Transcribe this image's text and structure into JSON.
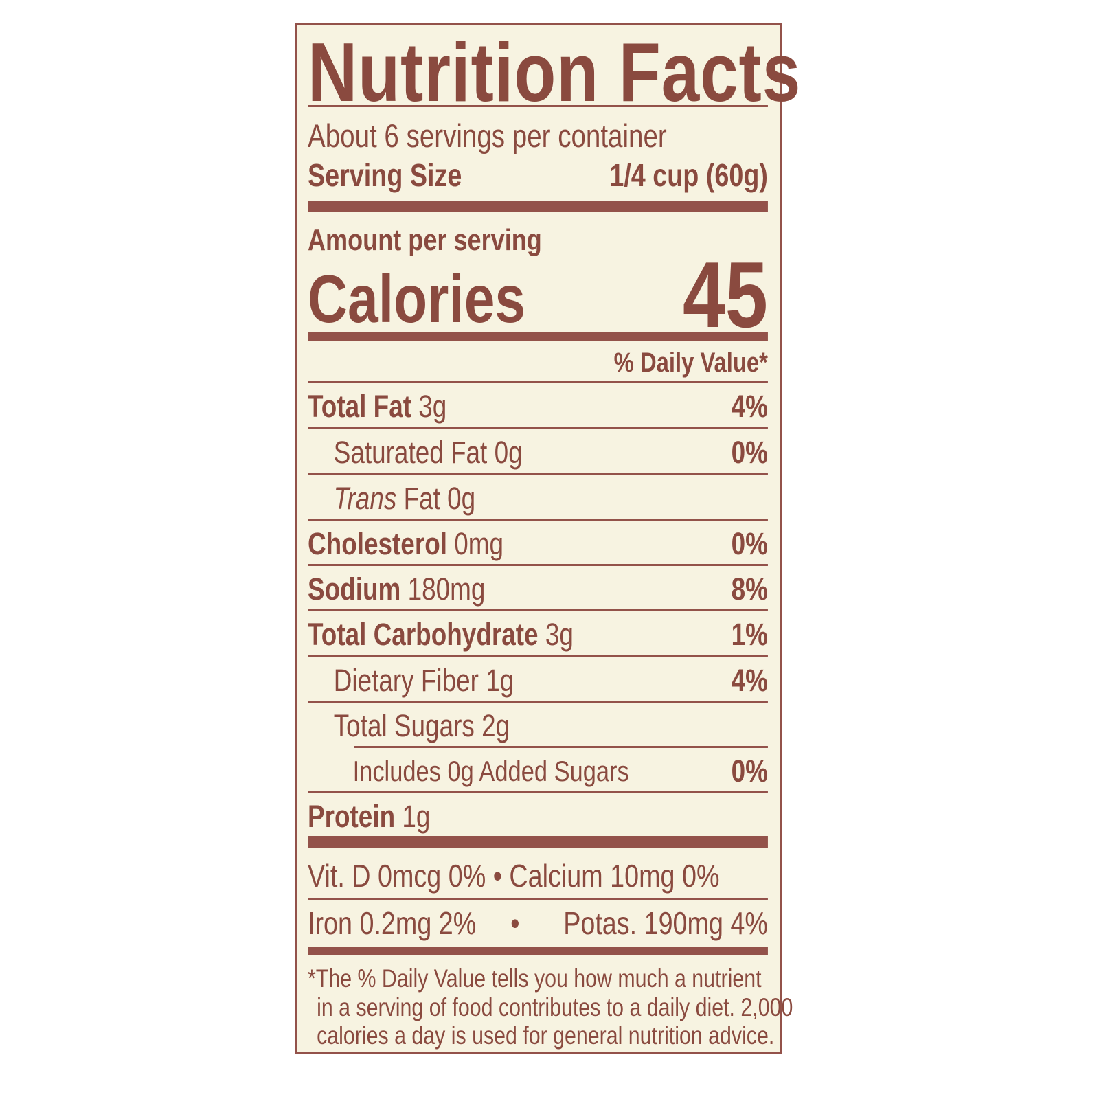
{
  "title": "Nutrition Facts",
  "servings_per_container": "About 6 servings per container",
  "serving_size": {
    "label": "Serving Size",
    "value": "1/4 cup (60g)"
  },
  "amount_per_serving": "Amount per serving",
  "calories": {
    "label": "Calories",
    "value": "45"
  },
  "daily_value_header": "% Daily Value*",
  "nutrients": [
    {
      "name": "Total Fat",
      "amount": "3g",
      "dv": "4%"
    },
    {
      "name": "Saturated Fat",
      "amount": "0g",
      "dv": "0%"
    },
    {
      "name_italic": "Trans",
      "name": "Fat",
      "amount": "0g",
      "dv": ""
    },
    {
      "name": "Cholesterol",
      "amount": "0mg",
      "dv": "0%"
    },
    {
      "name": "Sodium",
      "amount": "180mg",
      "dv": "8%"
    },
    {
      "name": "Total Carbohydrate",
      "amount": "3g",
      "dv": "1%"
    },
    {
      "name": "Dietary Fiber",
      "amount": "1g",
      "dv": "4%"
    },
    {
      "name": "Total Sugars",
      "amount": "2g",
      "dv": ""
    },
    {
      "name": "Includes 0g Added Sugars",
      "amount": "",
      "dv": "0%"
    },
    {
      "name": "Protein",
      "amount": "1g",
      "dv": ""
    }
  ],
  "vitamins": {
    "line1": "Vit. D 0mcg 0% • Calcium 10mg 0%",
    "line2_left": "Iron 0.2mg 2%",
    "line2_sep": "•",
    "line2_right": "Potas. 190mg 4%"
  },
  "footnote": [
    "*The % Daily Value tells you how much a nutrient",
    "in a serving of food contributes to a daily diet. 2,000",
    "calories a day is used for general nutrition advice."
  ],
  "colors": {
    "ink": "#8a4a3f",
    "background": "#f7f3e1"
  }
}
